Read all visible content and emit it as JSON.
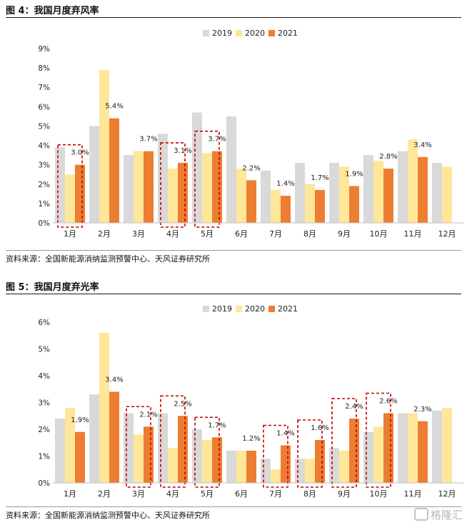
{
  "figure1": {
    "title": "图 4：我国月度弃风率",
    "source": "资料来源：全国新能源消纳监测预警中心、天风证券研究所"
  },
  "figure2": {
    "title": "图 5：我国月度弃光率",
    "source": "资料来源：全国新能源消纳监测预警中心、天风证券研究所"
  },
  "colors": {
    "s2019": "#d9d9d9",
    "s2020": "#ffe699",
    "s2021": "#ed7d31",
    "highlight": "#c00000"
  },
  "watermark": "格隆汇",
  "chart_data": [
    {
      "type": "bar",
      "title": "我国月度弃风率",
      "categories": [
        "1月",
        "2月",
        "3月",
        "4月",
        "5月",
        "6月",
        "7月",
        "8月",
        "9月",
        "10月",
        "11月",
        "12月"
      ],
      "series": [
        {
          "name": "2019",
          "values": [
            3.9,
            5.0,
            3.5,
            4.6,
            5.7,
            5.5,
            2.7,
            3.1,
            3.1,
            3.5,
            3.7,
            3.1
          ]
        },
        {
          "name": "2020",
          "values": [
            2.5,
            7.9,
            3.7,
            2.8,
            3.6,
            2.8,
            1.7,
            2.0,
            2.9,
            3.2,
            4.3,
            2.9
          ]
        },
        {
          "name": "2021",
          "values": [
            3.0,
            5.4,
            3.7,
            3.1,
            3.7,
            2.2,
            1.4,
            1.7,
            1.9,
            2.8,
            3.4,
            null
          ]
        }
      ],
      "labels": [
        "3.0%",
        "5.4%",
        "3.7%",
        "3.1%",
        "3.7%",
        "2.2%",
        "1.4%",
        "1.7%",
        "1.9%",
        "2.8%",
        "3.4%",
        ""
      ],
      "highlighted": [
        0,
        3,
        4
      ],
      "ylim": [
        0,
        9
      ],
      "yticks": [
        "0%",
        "1%",
        "2%",
        "3%",
        "4%",
        "5%",
        "6%",
        "7%",
        "8%",
        "9%"
      ],
      "legend": [
        "2019",
        "2020",
        "2021"
      ],
      "legend_position": "top-center"
    },
    {
      "type": "bar",
      "title": "我国月度弃光率",
      "categories": [
        "1月",
        "2月",
        "3月",
        "4月",
        "5月",
        "6月",
        "7月",
        "8月",
        "9月",
        "10月",
        "11月",
        "12月"
      ],
      "series": [
        {
          "name": "2019",
          "values": [
            2.4,
            3.3,
            2.6,
            2.6,
            2.0,
            1.2,
            0.9,
            0.9,
            1.3,
            1.9,
            2.6,
            2.7
          ]
        },
        {
          "name": "2020",
          "values": [
            2.8,
            5.6,
            1.8,
            1.3,
            1.6,
            1.2,
            0.5,
            0.9,
            1.2,
            2.1,
            2.6,
            2.8
          ]
        },
        {
          "name": "2021",
          "values": [
            1.9,
            3.4,
            2.1,
            2.5,
            1.7,
            1.2,
            1.4,
            1.6,
            2.4,
            2.6,
            2.3,
            null
          ]
        }
      ],
      "labels": [
        "1.9%",
        "3.4%",
        "2.1%",
        "2.5%",
        "1.7%",
        "1.2%",
        "1.4%",
        "1.6%",
        "2.4%",
        "2.6%",
        "2.3%",
        ""
      ],
      "highlighted": [
        2,
        3,
        4,
        6,
        7,
        8,
        9
      ],
      "ylim": [
        0,
        6
      ],
      "yticks": [
        "0%",
        "1%",
        "2%",
        "3%",
        "4%",
        "5%",
        "6%"
      ],
      "legend": [
        "2019",
        "2020",
        "2021"
      ],
      "legend_position": "top-center"
    }
  ]
}
